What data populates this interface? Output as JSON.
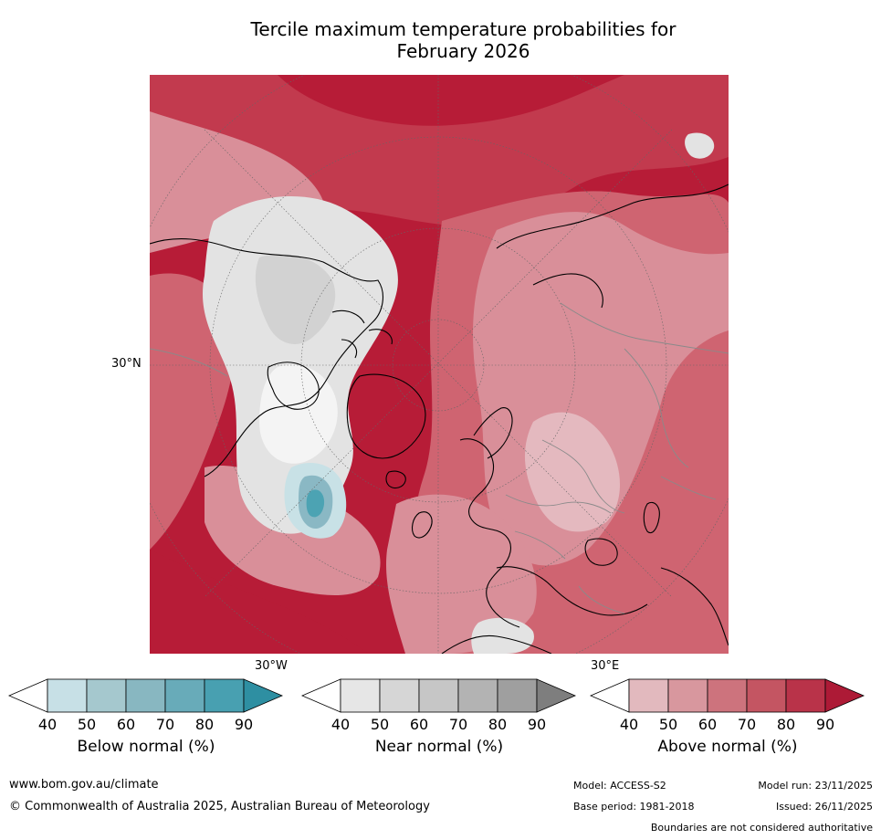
{
  "title_line1": "Tercile maximum temperature probabilities for",
  "title_line2": "February 2026",
  "map": {
    "projection": "north-polar stereographic",
    "lat_label": "30°N",
    "lon_labels": [
      "30°W",
      "30°E"
    ],
    "palette": {
      "background_red": "#b71c37",
      "ocean_strong": "#c23a4e",
      "mid_red": "#cf6471",
      "light_red": "#d98f99",
      "pink": "#e4b9bf",
      "near_grey": "#e3e3e3",
      "near_grey2": "#d2d2d2",
      "blue_light": "#c8e1e6",
      "blue_mid": "#8ab8c4",
      "blue_dark": "#4ca3b3"
    }
  },
  "colorbars": [
    {
      "name": "below",
      "label": "Below normal (%)",
      "ticks": [
        "40",
        "50",
        "60",
        "70",
        "80",
        "90"
      ],
      "colors": [
        "#ffffff",
        "#c7e0e6",
        "#a5c8ce",
        "#88b7c1",
        "#68abb9",
        "#48a0b1",
        "#2e8fa2"
      ]
    },
    {
      "name": "near",
      "label": "Near normal (%)",
      "ticks": [
        "40",
        "50",
        "60",
        "70",
        "80",
        "90"
      ],
      "colors": [
        "#ffffff",
        "#e6e6e6",
        "#d6d6d6",
        "#c6c6c6",
        "#b3b3b3",
        "#9f9f9f",
        "#7e7e7e"
      ]
    },
    {
      "name": "above",
      "label": "Above normal (%)",
      "ticks": [
        "40",
        "50",
        "60",
        "70",
        "80",
        "90"
      ],
      "colors": [
        "#ffffff",
        "#e2b9be",
        "#d8979e",
        "#cd737d",
        "#c45562",
        "#b93349",
        "#ad1a36"
      ]
    }
  ],
  "footer": {
    "url": "www.bom.gov.au/climate",
    "copyright": "© Commonwealth of Australia 2025, Australian Bureau of Meteorology",
    "model": "Model: ACCESS-S2",
    "base_period": "Base period: 1981-2018",
    "model_run": "Model run: 23/11/2025",
    "issued": "Issued: 26/11/2025",
    "disclaimer": "Boundaries are not considered authoritative"
  }
}
